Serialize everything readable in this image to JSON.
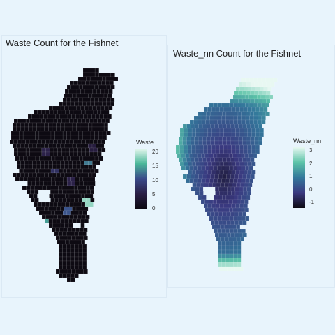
{
  "maps": [
    {
      "id": "waste",
      "title": "Waste Count for the Fishnet",
      "legend": {
        "title": "Waste",
        "ticks": [
          "20",
          "15",
          "10",
          "5",
          "0"
        ],
        "colors": [
          "#e6f7ef",
          "#4bb89a",
          "#3a4a8a",
          "#2a1f45",
          "#0d0a12"
        ]
      },
      "value_range": [
        0,
        23
      ],
      "cell_color_default": "#0d0a12"
    },
    {
      "id": "waste_nn",
      "title": "Waste_nn Count for the Fishnet",
      "legend": {
        "title": "Waste_nn",
        "ticks": [
          "3",
          "2",
          "1",
          "0",
          "-1"
        ],
        "colors": [
          "#e8f8f2",
          "#5cc3a8",
          "#33779b",
          "#3a3980",
          "#0d0a12"
        ]
      },
      "value_range": [
        -1.4,
        3.1
      ]
    }
  ]
}
